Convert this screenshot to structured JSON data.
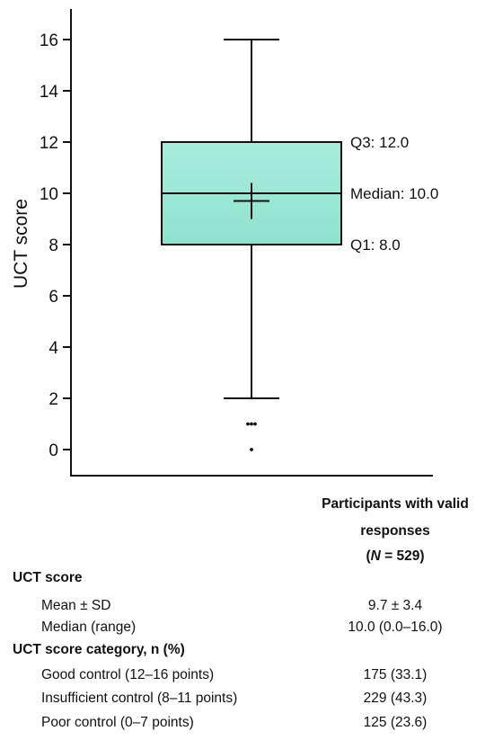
{
  "chart_data": {
    "type": "box",
    "ylabel": "UCT score",
    "ylim": [
      -1,
      17
    ],
    "yticks": [
      0,
      2,
      4,
      6,
      8,
      10,
      12,
      14,
      16
    ],
    "box": {
      "min": 2.0,
      "q1": 8.0,
      "median": 10.0,
      "q3": 12.0,
      "max": 16.0,
      "mean": 9.7,
      "outliers": [
        1.0,
        1.0,
        1.0,
        0.0
      ],
      "fill_color": "#a8ecdc"
    },
    "annotations": {
      "q3": "Q3: 12.0",
      "median": "Median: 10.0",
      "q1": "Q1: 8.0"
    }
  },
  "table": {
    "header_line1": "Participants with valid",
    "header_line2": "responses",
    "header_n_open": "(",
    "header_n_symbol": "N",
    "header_n_value": " = 529)",
    "sections": [
      {
        "title": "UCT score",
        "rows": [
          {
            "label": "Mean ± SD",
            "value": "9.7 ± 3.4"
          },
          {
            "label": "Median (range)",
            "value": "10.0 (0.0–16.0)"
          }
        ]
      },
      {
        "title": "UCT score category, n (%)",
        "rows": [
          {
            "label": "Good control (12–16 points)",
            "value": "175 (33.1)"
          },
          {
            "label": "Insufficient control (8–11 points)",
            "value": "229 (43.3)"
          },
          {
            "label": "Poor control (0–7 points)",
            "value": "125 (23.6)"
          }
        ]
      }
    ]
  }
}
